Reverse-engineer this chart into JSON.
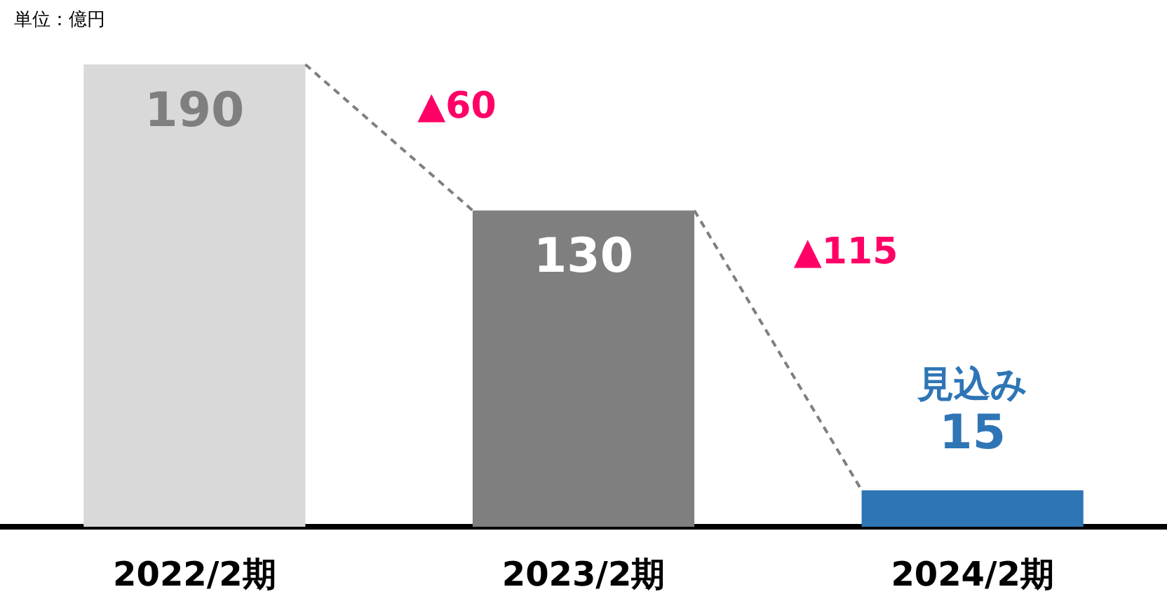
{
  "chart_data": {
    "type": "bar",
    "categories": [
      "2022/2期",
      "2023/2期",
      "2024/2期"
    ],
    "values": [
      190,
      130,
      15
    ],
    "colors": [
      "#d9d9d9",
      "#7f7f7f",
      "#2e75b6"
    ],
    "data_labels": true,
    "annotations": [
      "単位：億円",
      "▲60",
      "▲115",
      {
        "text": "見込み",
        "x": "2024/2期",
        "y": 15
      }
    ]
  }
}
